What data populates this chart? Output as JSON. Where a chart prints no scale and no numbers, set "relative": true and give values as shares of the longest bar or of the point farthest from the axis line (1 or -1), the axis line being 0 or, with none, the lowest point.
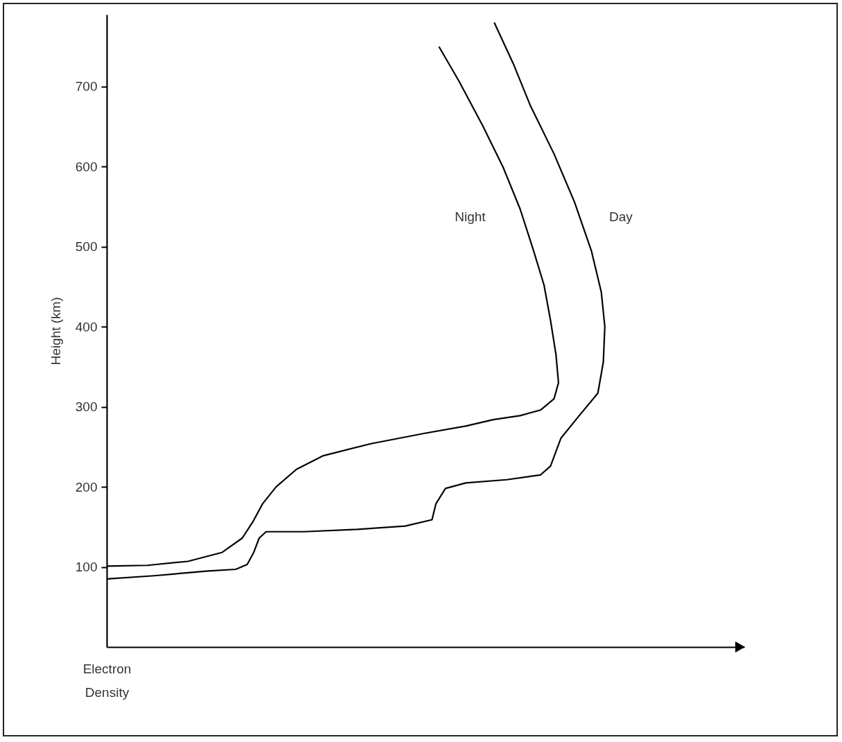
{
  "chart_data": {
    "type": "line",
    "orientation": "horizontal",
    "xlabel": "Electron Density",
    "ylabel": "Height (km)",
    "relative": true,
    "tick_labels": "y",
    "grid": false,
    "ylim": [
      0,
      790
    ],
    "yticks": [
      100,
      200,
      300,
      400,
      500,
      600,
      700
    ],
    "series": [
      {
        "name": "Night",
        "color": "#000000",
        "x": [
          101,
          102,
          107,
          118,
          136,
          156,
          179,
          200,
          222,
          239,
          254,
          267,
          276,
          284,
          289,
          296,
          310,
          330,
          365,
          408,
          452,
          495,
          547,
          599,
          651,
          707,
          750
        ],
        "values": [
          0,
          0.082,
          0.163,
          0.231,
          0.272,
          0.293,
          0.313,
          0.34,
          0.381,
          0.435,
          0.531,
          0.639,
          0.721,
          0.776,
          0.83,
          0.871,
          0.898,
          0.907,
          0.902,
          0.891,
          0.878,
          0.857,
          0.83,
          0.796,
          0.755,
          0.707,
          0.667
        ]
      },
      {
        "name": "Day",
        "color": "#000000",
        "x": [
          85,
          89,
          95,
          97,
          103,
          118,
          136,
          144,
          144,
          147,
          151,
          159,
          179,
          198,
          205,
          209,
          215,
          226,
          261,
          287,
          317,
          356,
          400,
          443,
          495,
          556,
          616,
          677,
          729,
          780
        ],
        "values": [
          0,
          0.095,
          0.204,
          0.259,
          0.282,
          0.295,
          0.306,
          0.32,
          0.395,
          0.503,
          0.599,
          0.653,
          0.661,
          0.68,
          0.721,
          0.803,
          0.871,
          0.891,
          0.912,
          0.946,
          0.986,
          0.997,
          1.0,
          0.993,
          0.973,
          0.939,
          0.898,
          0.85,
          0.816,
          0.778
        ]
      }
    ]
  }
}
